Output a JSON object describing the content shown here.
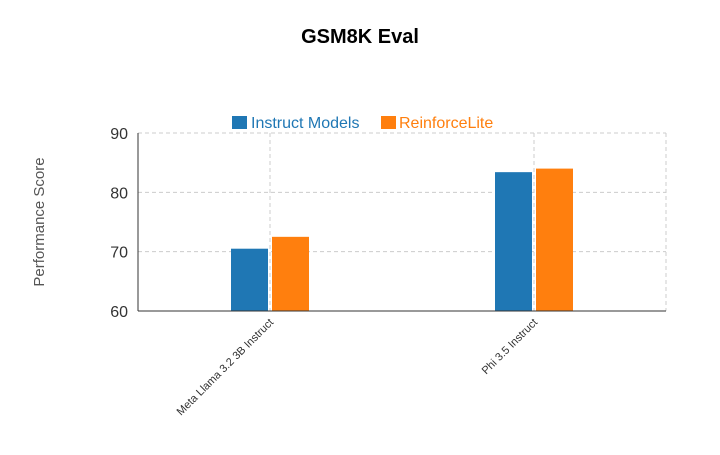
{
  "chart_data": {
    "type": "bar",
    "title": "GSM8K Eval",
    "xlabel": "",
    "ylabel": "Performance Score",
    "categories": [
      "Meta Llama 3.2 3B Instruct",
      "Phi 3.5 Instruct"
    ],
    "series": [
      {
        "name": "Instruct Models",
        "color": "#1f77b4",
        "values": [
          70.5,
          83.4
        ]
      },
      {
        "name": "ReinforceLite",
        "color": "#ff7f0e",
        "values": [
          72.5,
          84.0
        ]
      }
    ],
    "ylim": [
      60,
      90
    ],
    "yticks": [
      "60",
      "70",
      "80",
      "90"
    ],
    "grid": true,
    "legend_position": "top-center"
  }
}
